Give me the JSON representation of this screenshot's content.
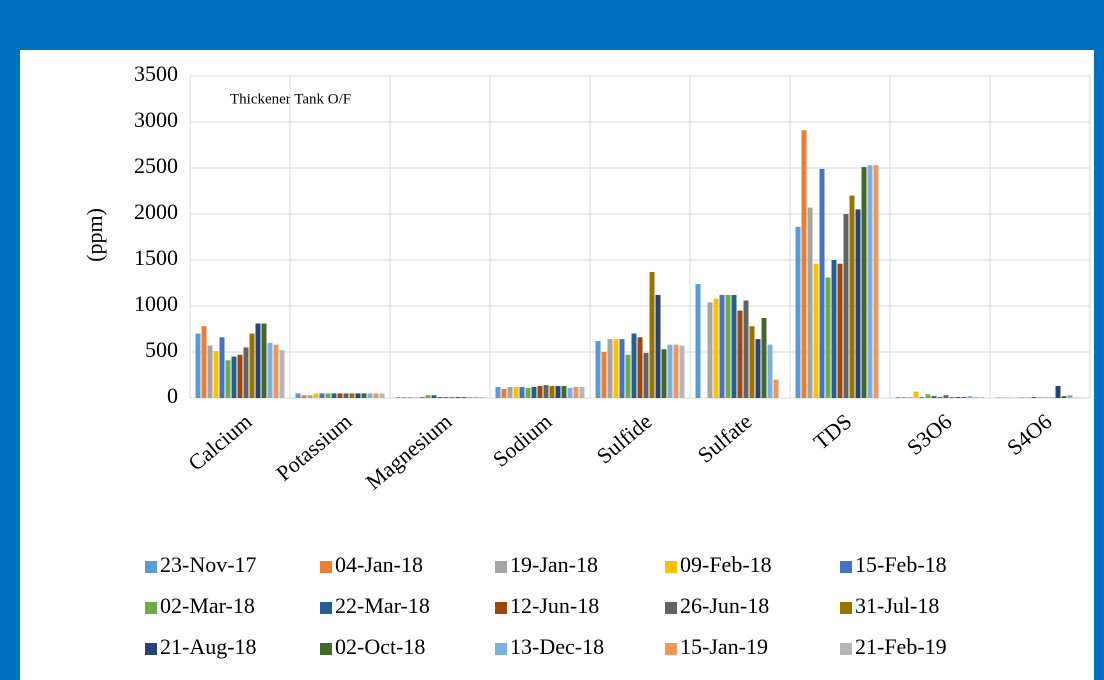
{
  "chart_data": {
    "type": "bar",
    "annotation": "Thickener Tank O/F",
    "y_label": "(ppm)",
    "categories": [
      "Calcium",
      "Potassium",
      "Magnesium",
      "Sodium",
      "Sulfide",
      "Sulfate",
      "TDS",
      "S3O6",
      "S4O6"
    ],
    "series": [
      {
        "name": "23-Nov-17",
        "color": "#5b9bd5",
        "values": [
          700,
          50,
          10,
          120,
          620,
          1240,
          1860,
          10,
          5
        ]
      },
      {
        "name": "04-Jan-18",
        "color": "#ed7d31",
        "values": [
          780,
          30,
          10,
          100,
          500,
          null,
          2910,
          10,
          5
        ]
      },
      {
        "name": "19-Jan-18",
        "color": "#a5a5a5",
        "values": [
          570,
          30,
          10,
          120,
          640,
          1040,
          2070,
          10,
          5
        ]
      },
      {
        "name": "09-Feb-18",
        "color": "#ffc000",
        "values": [
          510,
          50,
          10,
          120,
          640,
          1080,
          1460,
          70,
          5
        ]
      },
      {
        "name": "15-Feb-18",
        "color": "#4472c4",
        "values": [
          660,
          50,
          10,
          120,
          640,
          1120,
          2490,
          10,
          5
        ]
      },
      {
        "name": "02-Mar-18",
        "color": "#70ad47",
        "values": [
          410,
          50,
          30,
          110,
          470,
          1120,
          1310,
          40,
          5
        ]
      },
      {
        "name": "22-Mar-18",
        "color": "#255e91",
        "values": [
          450,
          50,
          30,
          120,
          700,
          1120,
          1500,
          20,
          10
        ]
      },
      {
        "name": "12-Jun-18",
        "color": "#9e480e",
        "values": [
          470,
          50,
          10,
          130,
          660,
          950,
          1460,
          10,
          5
        ]
      },
      {
        "name": "26-Jun-18",
        "color": "#636363",
        "values": [
          550,
          50,
          10,
          140,
          490,
          1060,
          2000,
          30,
          5
        ]
      },
      {
        "name": "31-Jul-18",
        "color": "#997300",
        "values": [
          700,
          50,
          10,
          130,
          1370,
          780,
          2200,
          10,
          5
        ]
      },
      {
        "name": "21-Aug-18",
        "color": "#264478",
        "values": [
          810,
          50,
          10,
          130,
          1120,
          640,
          2050,
          10,
          130
        ]
      },
      {
        "name": "02-Oct-18",
        "color": "#43682b",
        "values": [
          810,
          50,
          10,
          130,
          530,
          870,
          2510,
          10,
          20
        ]
      },
      {
        "name": "13-Dec-18",
        "color": "#7cafdd",
        "values": [
          600,
          50,
          10,
          110,
          580,
          580,
          2530,
          20,
          30
        ]
      },
      {
        "name": "15-Jan-19",
        "color": "#f1975a",
        "values": [
          580,
          50,
          10,
          120,
          580,
          200,
          2530,
          10,
          5
        ]
      },
      {
        "name": "21-Feb-19",
        "color": "#b7b7b7",
        "values": [
          520,
          50,
          10,
          120,
          570,
          null,
          null,
          10,
          5
        ]
      }
    ],
    "ylim": [
      0,
      3500
    ],
    "yticks": [
      0,
      500,
      1000,
      1500,
      2000,
      2500,
      3000,
      3500
    ],
    "grid": true
  }
}
